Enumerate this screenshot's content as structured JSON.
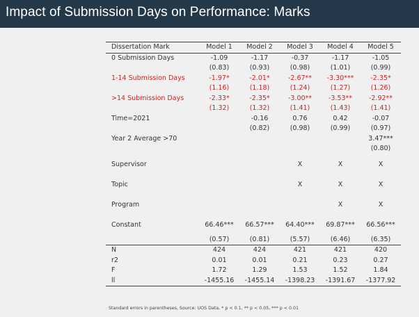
{
  "title": "Impact of Submission Days on Performance: Marks",
  "table": {
    "headers": [
      "Dissertation Mark",
      "Model 1",
      "Model 2",
      "Model 3",
      "Model 4",
      "Model 5"
    ],
    "rows": [
      {
        "label": "0 Submission Days",
        "coef": [
          "-1.09",
          "-1.17",
          "-0.37",
          "-1.17",
          "-1.05"
        ],
        "se": [
          "(0.83)",
          "(0.93)",
          "(0.98)",
          "(1.01)",
          "(0.99)"
        ]
      },
      {
        "label": "1-14 Submission Days",
        "coef": [
          "-1.97*",
          "-2.01*",
          "-2.67**",
          "-3.30***",
          "-2.35*"
        ],
        "se": [
          "(1.16)",
          "(1.18)",
          "(1.24)",
          "(1.27)",
          "(1.26)"
        ]
      },
      {
        "label": ">14 Submission Days",
        "coef": [
          "-2.33*",
          "-2.35*",
          "-3.00**",
          "-3.53**",
          "-2.92**"
        ],
        "se": [
          "(1.32)",
          "(1.32)",
          "(1.41)",
          "(1.43)",
          "(1.41)"
        ]
      },
      {
        "label": "Time=2021",
        "coef": [
          "",
          "-0.16",
          "0.76",
          "0.42",
          "-0.07"
        ],
        "se": [
          "",
          "(0.82)",
          "(0.98)",
          "(0.99)",
          "(0.97)"
        ]
      },
      {
        "label": "Year 2 Average >70",
        "coef": [
          "",
          "",
          "",
          "",
          "3.47***"
        ],
        "se": [
          "",
          "",
          "",
          "",
          "(0.80)"
        ]
      },
      {
        "label": "Supervisor",
        "coef": [
          "",
          "",
          "X",
          "X",
          "X"
        ]
      },
      {
        "label": "Topic",
        "coef": [
          "",
          "",
          "X",
          "X",
          "X"
        ]
      },
      {
        "label": "Program",
        "coef": [
          "",
          "",
          "",
          "X",
          "X"
        ]
      },
      {
        "label": "Constant",
        "coef": [
          "66.46***",
          "66.57***",
          "64.40***",
          "69.87***",
          "66.56***"
        ],
        "se": [
          "(0.57)",
          "(0.81)",
          "(5.57)",
          "(6.46)",
          "(6.35)"
        ]
      }
    ],
    "stats": [
      {
        "label": "N",
        "values": [
          "424",
          "424",
          "421",
          "421",
          "420"
        ]
      },
      {
        "label": "r2",
        "values": [
          "0.01",
          "0.01",
          "0.21",
          "0.23",
          "0.27"
        ]
      },
      {
        "label": "F",
        "values": [
          "1.72",
          "1.29",
          "1.53",
          "1.52",
          "1.84"
        ]
      },
      {
        "label": "ll",
        "values": [
          "-1455.16",
          "-1455.14",
          "-1398.23",
          "-1391.67",
          "-1377.92"
        ]
      }
    ]
  },
  "footnote": "Standard errors in parentheses, Source: UOS Data, * p < 0.1, ** p < 0.05, *** p < 0.01",
  "colors": {
    "title_bar": "#25384a",
    "highlight": "#d02020",
    "background": "#f0f0f0"
  }
}
